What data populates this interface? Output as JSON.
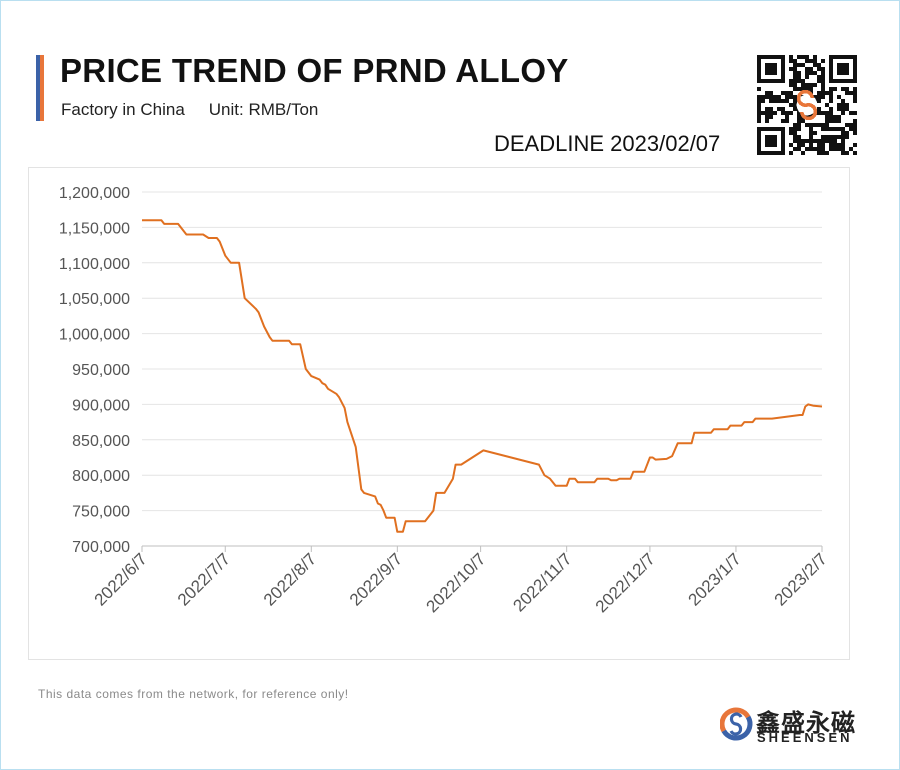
{
  "header": {
    "title": "PRICE TREND OF PRND ALLOY",
    "subtitle_left": "Factory in China",
    "subtitle_right": "Unit: RMB/Ton",
    "deadline_label": "DEADLINE",
    "deadline_date": "2023/02/07"
  },
  "colors": {
    "line": "#e07020",
    "accent_blue": "#3b62a8",
    "accent_orange": "#e8763a",
    "grid": "#e4e4e4"
  },
  "icons": {
    "qr": "qr-code-icon",
    "logo": "sheensen-logo-icon"
  },
  "footnote": "This data comes from the network, for reference only!",
  "brand": {
    "chinese": "鑫盛永磁",
    "english": "SHEENSEN"
  },
  "chart_data": {
    "type": "line",
    "title": "",
    "xlabel": "",
    "ylabel": "",
    "ylim": [
      700000,
      1200000
    ],
    "yticks": [
      700000,
      750000,
      800000,
      850000,
      900000,
      950000,
      1000000,
      1050000,
      1100000,
      1150000,
      1200000
    ],
    "ytick_labels": [
      "700,000",
      "750,000",
      "800,000",
      "850,000",
      "900,000",
      "950,000",
      "1,000,000",
      "1,050,000",
      "1,100,000",
      "1,150,000",
      "1,200,000"
    ],
    "xlim": [
      "2022-06-07",
      "2023-02-07"
    ],
    "xticks": [
      "2022-06-07",
      "2022-07-07",
      "2022-08-07",
      "2022-09-07",
      "2022-10-07",
      "2022-11-07",
      "2022-12-07",
      "2023-01-07",
      "2023-02-07"
    ],
    "xtick_labels": [
      "2022/6/7",
      "2022/7/7",
      "2022/8/7",
      "2022/9/7",
      "2022/10/7",
      "2022/11/7",
      "2022/12/7",
      "2023/1/7",
      "2023/2/7"
    ],
    "grid": true,
    "legend": "none",
    "series": [
      {
        "points": [
          [
            "2022-06-07",
            1160000
          ],
          [
            "2022-06-14",
            1160000
          ],
          [
            "2022-06-15",
            1155000
          ],
          [
            "2022-06-20",
            1155000
          ],
          [
            "2022-06-23",
            1140000
          ],
          [
            "2022-06-29",
            1140000
          ],
          [
            "2022-07-01",
            1135000
          ],
          [
            "2022-07-04",
            1135000
          ],
          [
            "2022-07-05",
            1130000
          ],
          [
            "2022-07-07",
            1110000
          ],
          [
            "2022-07-09",
            1100000
          ],
          [
            "2022-07-12",
            1100000
          ],
          [
            "2022-07-14",
            1050000
          ],
          [
            "2022-07-18",
            1035000
          ],
          [
            "2022-07-19",
            1030000
          ],
          [
            "2022-07-21",
            1010000
          ],
          [
            "2022-07-23",
            995000
          ],
          [
            "2022-07-24",
            990000
          ],
          [
            "2022-07-30",
            990000
          ],
          [
            "2022-07-31",
            985000
          ],
          [
            "2022-08-03",
            985000
          ],
          [
            "2022-08-05",
            950000
          ],
          [
            "2022-08-07",
            940000
          ],
          [
            "2022-08-10",
            935000
          ],
          [
            "2022-08-11",
            930000
          ],
          [
            "2022-08-12",
            928000
          ],
          [
            "2022-08-13",
            922000
          ],
          [
            "2022-08-16",
            915000
          ],
          [
            "2022-08-17",
            910000
          ],
          [
            "2022-08-19",
            895000
          ],
          [
            "2022-08-20",
            875000
          ],
          [
            "2022-08-23",
            840000
          ],
          [
            "2022-08-24",
            810000
          ],
          [
            "2022-08-25",
            780000
          ],
          [
            "2022-08-26",
            775000
          ],
          [
            "2022-08-30",
            770000
          ],
          [
            "2022-08-31",
            760000
          ],
          [
            "2022-09-01",
            758000
          ],
          [
            "2022-09-02",
            750000
          ],
          [
            "2022-09-03",
            740000
          ],
          [
            "2022-09-06",
            740000
          ],
          [
            "2022-09-07",
            720000
          ],
          [
            "2022-09-09",
            720000
          ],
          [
            "2022-09-10",
            735000
          ],
          [
            "2022-09-17",
            735000
          ],
          [
            "2022-09-20",
            750000
          ],
          [
            "2022-09-21",
            775000
          ],
          [
            "2022-09-24",
            775000
          ],
          [
            "2022-09-27",
            795000
          ],
          [
            "2022-09-28",
            815000
          ],
          [
            "2022-09-30",
            815000
          ],
          [
            "2022-10-08",
            835000
          ],
          [
            "2022-10-28",
            815000
          ],
          [
            "2022-10-30",
            800000
          ],
          [
            "2022-11-01",
            795000
          ],
          [
            "2022-11-03",
            785000
          ],
          [
            "2022-11-07",
            785000
          ],
          [
            "2022-11-08",
            795000
          ],
          [
            "2022-11-10",
            795000
          ],
          [
            "2022-11-11",
            790000
          ],
          [
            "2022-11-17",
            790000
          ],
          [
            "2022-11-18",
            795000
          ],
          [
            "2022-11-22",
            795000
          ],
          [
            "2022-11-23",
            793000
          ],
          [
            "2022-11-25",
            793000
          ],
          [
            "2022-11-26",
            795000
          ],
          [
            "2022-11-30",
            795000
          ],
          [
            "2022-12-01",
            805000
          ],
          [
            "2022-12-05",
            805000
          ],
          [
            "2022-12-07",
            825000
          ],
          [
            "2022-12-08",
            825000
          ],
          [
            "2022-12-09",
            822000
          ],
          [
            "2022-12-13",
            823000
          ],
          [
            "2022-12-15",
            827000
          ],
          [
            "2022-12-17",
            845000
          ],
          [
            "2022-12-22",
            845000
          ],
          [
            "2022-12-23",
            860000
          ],
          [
            "2022-12-29",
            860000
          ],
          [
            "2022-12-30",
            865000
          ],
          [
            "2023-01-04",
            865000
          ],
          [
            "2023-01-05",
            870000
          ],
          [
            "2023-01-09",
            870000
          ],
          [
            "2023-01-10",
            875000
          ],
          [
            "2023-01-13",
            875000
          ],
          [
            "2023-01-14",
            880000
          ],
          [
            "2023-01-20",
            880000
          ],
          [
            "2023-01-30",
            885000
          ],
          [
            "2023-01-31",
            885000
          ],
          [
            "2023-02-01",
            897000
          ],
          [
            "2023-02-02",
            900000
          ],
          [
            "2023-02-04",
            898000
          ],
          [
            "2023-02-07",
            897000
          ]
        ]
      }
    ]
  }
}
